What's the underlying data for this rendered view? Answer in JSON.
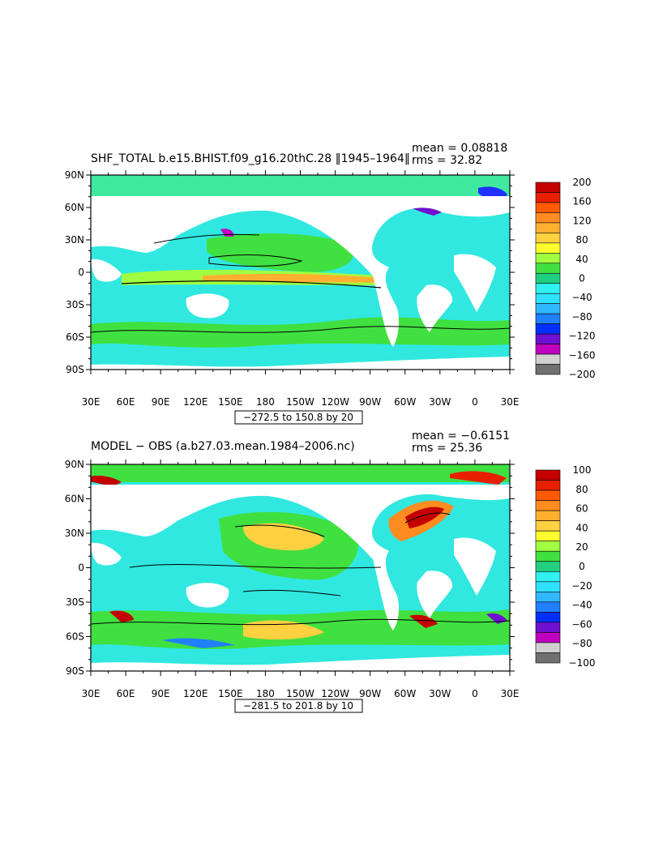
{
  "panels": [
    {
      "id": "top",
      "title": "SHF_TOTAL b.e15.BHIST.f09_g16.20thC.28 ‖1945–1964‖",
      "mean_text": "mean = 0.08818",
      "rms_text": "rms = 32.82",
      "range_text": "−272.5 to 150.8 by 20",
      "lat_labels": [
        "90N",
        "60N",
        "30N",
        "0",
        "30S",
        "60S",
        "90S"
      ],
      "lon_labels": [
        "30E",
        "60E",
        "90E",
        "120E",
        "150E",
        "180",
        "150W",
        "120W",
        "90W",
        "60W",
        "30W",
        "0",
        "30E"
      ],
      "colorbar_labels": [
        "200",
        "160",
        "120",
        "80",
        "40",
        "0",
        "−40",
        "−80",
        "−120",
        "−160",
        "−200"
      ],
      "colorbar_colors": [
        "#c40000",
        "#e82000",
        "#ff5a00",
        "#ff8c20",
        "#ffb030",
        "#ffd040",
        "#ffff30",
        "#a0ff40",
        "#40e040",
        "#20d080",
        "#30f0f0",
        "#30e0ff",
        "#30b8ff",
        "#2080ff",
        "#0030ff",
        "#7010d0",
        "#c000c0",
        "#d0d0d0",
        "#707070"
      ]
    },
    {
      "id": "bottom",
      "title": "MODEL − OBS (a.b27.03.mean.1984–2006.nc)",
      "mean_text": "mean = −0.6151",
      "rms_text": "rms = 25.36",
      "range_text": "−281.5 to 201.8 by 10",
      "lat_labels": [
        "90N",
        "60N",
        "30N",
        "0",
        "30S",
        "60S",
        "90S"
      ],
      "lon_labels": [
        "30E",
        "60E",
        "90E",
        "120E",
        "150E",
        "180",
        "150W",
        "120W",
        "90W",
        "60W",
        "30W",
        "0",
        "30E"
      ],
      "colorbar_labels": [
        "100",
        "80",
        "60",
        "40",
        "20",
        "0",
        "−20",
        "−40",
        "−60",
        "−80",
        "−100"
      ],
      "colorbar_colors": [
        "#c40000",
        "#e82000",
        "#ff5a00",
        "#ff8c20",
        "#ffb030",
        "#ffd040",
        "#ffff30",
        "#a0ff40",
        "#40e040",
        "#20d080",
        "#30f0f0",
        "#30e0ff",
        "#30b8ff",
        "#2080ff",
        "#0030ff",
        "#7010d0",
        "#c000c0",
        "#d0d0d0",
        "#707070"
      ]
    }
  ],
  "colors": {
    "ocean_top": "#30e8e0",
    "ocean_bottom": "#30e8e0",
    "eq_band": "#40e040",
    "hot_band": "#ffb030",
    "land": "#ffffff"
  }
}
